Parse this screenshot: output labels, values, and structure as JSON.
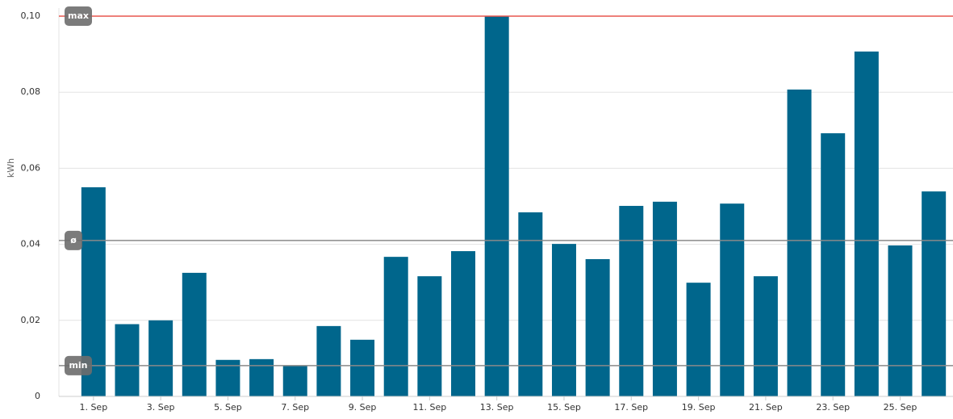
{
  "chart_data": {
    "type": "bar",
    "y_label": "kWh",
    "categories": [
      "1. Sep",
      null,
      "3. Sep",
      null,
      "5. Sep",
      null,
      "7. Sep",
      null,
      "9. Sep",
      null,
      "11. Sep",
      null,
      "13. Sep",
      null,
      "15. Sep",
      null,
      "17. Sep",
      null,
      "19. Sep",
      null,
      "21. Sep",
      null,
      "23. Sep",
      null,
      "25. Sep",
      null
    ],
    "values": [
      0.055,
      0.019,
      0.02,
      0.0325,
      0.0096,
      0.0098,
      0.0081,
      0.0185,
      0.0149,
      0.0367,
      0.0316,
      0.0382,
      0.1,
      0.0484,
      0.0401,
      0.0361,
      0.0501,
      0.0512,
      0.0299,
      0.0507,
      0.0316,
      0.0807,
      0.0692,
      0.0907,
      0.0397,
      0.0539
    ],
    "color": "#00668c",
    "ylim": [
      0,
      0.1
    ],
    "yticks": [
      0,
      {
        "value": 0.02,
        "label": "0,02"
      },
      {
        "value": 0.04,
        "label": "0,04"
      },
      {
        "value": 0.06,
        "label": "0,06"
      },
      {
        "value": 0.08,
        "label": "0,08"
      },
      {
        "value": 0.1,
        "label": "0,10"
      }
    ],
    "grid": true,
    "reference_lines": [
      {
        "label": "max",
        "value": 0.1,
        "color": "#e8574f"
      },
      {
        "label": "ø",
        "value": 0.041,
        "color": "#8a8a8a"
      },
      {
        "label": "min",
        "value": 0.0081,
        "color": "#8a8a8a"
      }
    ]
  }
}
